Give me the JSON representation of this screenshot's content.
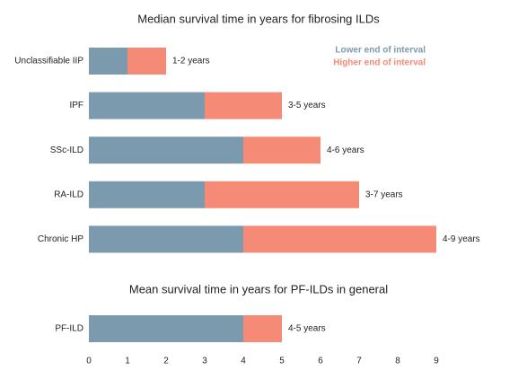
{
  "chart_data": [
    {
      "type": "bar",
      "orientation": "horizontal",
      "title": "Median survival time in years for fibrosing ILDs",
      "categories": [
        "Unclassifiable IIP",
        "IPF",
        "SSc-ILD",
        "RA-ILD",
        "Chronic HP"
      ],
      "series": [
        {
          "name": "Lower end of interval",
          "color": "#7b9aae",
          "values": [
            1,
            3,
            4,
            3,
            4
          ]
        },
        {
          "name": "Higher end of interval",
          "color": "#f58a76",
          "values": [
            2,
            5,
            6,
            7,
            9
          ]
        }
      ],
      "value_labels": [
        "1-2 years",
        "3-5 years",
        "4-6 years",
        "3-7 years",
        "4-9 years"
      ],
      "xlim": [
        0,
        9
      ],
      "legend": "upper right"
    },
    {
      "type": "bar",
      "orientation": "horizontal",
      "title": "Mean survival time in years for PF-ILDs in general",
      "categories": [
        "PF-ILD"
      ],
      "series": [
        {
          "color": "#7b9aae",
          "values": [
            4
          ]
        },
        {
          "color": "#f58a76",
          "values": [
            5
          ]
        }
      ],
      "value_labels": [
        "4-5 years"
      ],
      "xlim": [
        0,
        9
      ],
      "xticks": [
        0,
        1,
        2,
        3,
        4,
        5,
        6,
        7,
        8,
        9
      ]
    }
  ]
}
